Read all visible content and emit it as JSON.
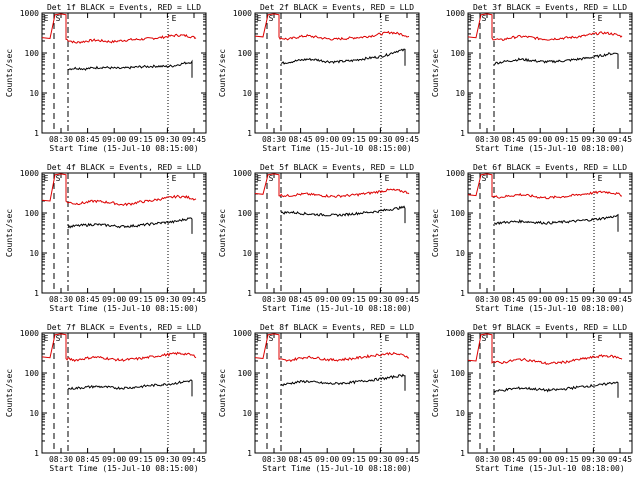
{
  "chart_data": [
    {
      "type": "line",
      "title": "Det 1f BLACK = Events, RED = LLD",
      "xlabel": "Start Time (15-Jul-10 08:15:00)",
      "ylabel": "Counts/sec",
      "ylim": [
        1,
        1000
      ],
      "ylog": true,
      "x_ticks": [
        "08:30",
        "08:45",
        "09:00",
        "09:15",
        "09:30",
        "09:45"
      ],
      "y_ticks": [
        "1",
        "10",
        "100",
        "1000"
      ],
      "markers": [
        "E",
        "S",
        "E"
      ],
      "series": [
        {
          "color": "#dd0000",
          "values": [
            220,
            180,
            195,
            210,
            200,
            190,
            205,
            215,
            220,
            230,
            240,
            260,
            280,
            270,
            240
          ]
        },
        {
          "color": "#000000",
          "values": [
            40,
            42,
            40,
            43,
            44,
            42,
            41,
            43,
            45,
            46,
            47,
            46,
            48,
            55,
            60
          ]
        }
      ]
    },
    {
      "type": "line",
      "title": "Det 2f BLACK = Events, RED = LLD",
      "xlabel": "Start Time (15-Jul-10 08:15:00)",
      "ylabel": "Counts/sec",
      "ylim": [
        1,
        1000
      ],
      "ylog": true,
      "x_ticks": [
        "08:30",
        "08:45",
        "09:00",
        "09:15",
        "09:30",
        "09:45"
      ],
      "y_ticks": [
        "1",
        "10",
        "100",
        "1000"
      ],
      "markers": [
        "E",
        "S",
        "E"
      ],
      "series": [
        {
          "color": "#dd0000",
          "values": [
            240,
            220,
            250,
            270,
            250,
            230,
            220,
            230,
            240,
            250,
            270,
            300,
            330,
            300,
            260
          ]
        },
        {
          "color": "#000000",
          "values": [
            55,
            60,
            65,
            70,
            68,
            62,
            60,
            62,
            64,
            70,
            75,
            80,
            90,
            110,
            120
          ]
        }
      ]
    },
    {
      "type": "line",
      "title": "Det 3f BLACK = Events, RED = LLD",
      "xlabel": "Start Time (15-Jul-10 08:18:00)",
      "ylabel": "Counts/sec",
      "ylim": [
        1,
        1000
      ],
      "ylog": true,
      "x_ticks": [
        "08:30",
        "08:45",
        "09:00",
        "09:15",
        "09:30",
        "09:45"
      ],
      "y_ticks": [
        "1",
        "10",
        "100",
        "1000"
      ],
      "markers": [
        "E",
        "S",
        "E"
      ],
      "series": [
        {
          "color": "#dd0000",
          "values": [
            230,
            210,
            240,
            260,
            250,
            230,
            220,
            230,
            240,
            250,
            270,
            300,
            320,
            300,
            260
          ]
        },
        {
          "color": "#000000",
          "values": [
            55,
            60,
            65,
            70,
            66,
            62,
            60,
            62,
            64,
            68,
            72,
            78,
            85,
            95,
            100
          ]
        }
      ]
    },
    {
      "type": "line",
      "title": "Det 4f BLACK = Events, RED = LLD",
      "xlabel": "Start Time (15-Jul-10 08:15:00)",
      "ylabel": "Counts/sec",
      "ylim": [
        1,
        1000
      ],
      "ylog": true,
      "x_ticks": [
        "08:30",
        "08:45",
        "09:00",
        "09:15",
        "09:30",
        "09:45"
      ],
      "y_ticks": [
        "1",
        "10",
        "100",
        "1000"
      ],
      "markers": [
        "E",
        "S",
        "E"
      ],
      "series": [
        {
          "color": "#dd0000",
          "values": [
            190,
            170,
            180,
            200,
            190,
            180,
            160,
            170,
            190,
            200,
            220,
            240,
            260,
            250,
            220
          ]
        },
        {
          "color": "#000000",
          "values": [
            45,
            48,
            50,
            52,
            50,
            48,
            46,
            47,
            49,
            52,
            55,
            58,
            60,
            68,
            75
          ]
        }
      ]
    },
    {
      "type": "line",
      "title": "Det 5f BLACK = Events, RED = LLD",
      "xlabel": "Start Time (15-Jul-10 08:18:00)",
      "ylabel": "Counts/sec",
      "ylim": [
        1,
        1000
      ],
      "ylog": true,
      "x_ticks": [
        "08:30",
        "08:45",
        "09:00",
        "09:15",
        "09:30",
        "09:45"
      ],
      "y_ticks": [
        "1",
        "10",
        "100",
        "1000"
      ],
      "markers": [
        "E",
        "S",
        "E"
      ],
      "series": [
        {
          "color": "#dd0000",
          "values": [
            280,
            270,
            290,
            300,
            280,
            270,
            260,
            270,
            280,
            300,
            320,
            350,
            380,
            360,
            320
          ]
        },
        {
          "color": "#000000",
          "values": [
            100,
            105,
            100,
            95,
            92,
            90,
            88,
            90,
            95,
            100,
            105,
            110,
            120,
            130,
            140
          ]
        }
      ]
    },
    {
      "type": "line",
      "title": "Det 6f BLACK = Events, RED = LLD",
      "xlabel": "Start Time (15-Jul-10 08:18:00)",
      "ylabel": "Counts/sec",
      "ylim": [
        1,
        1000
      ],
      "ylog": true,
      "x_ticks": [
        "08:30",
        "08:45",
        "09:00",
        "09:15",
        "09:30",
        "09:45"
      ],
      "y_ticks": [
        "1",
        "10",
        "100",
        "1000"
      ],
      "markers": [
        "E",
        "S",
        "E"
      ],
      "series": [
        {
          "color": "#dd0000",
          "values": [
            260,
            250,
            270,
            290,
            270,
            250,
            240,
            250,
            260,
            280,
            300,
            320,
            340,
            320,
            280
          ]
        },
        {
          "color": "#000000",
          "values": [
            55,
            58,
            60,
            62,
            60,
            58,
            56,
            58,
            60,
            62,
            65,
            68,
            72,
            78,
            85
          ]
        }
      ]
    },
    {
      "type": "line",
      "title": "Det 7f BLACK = Events, RED = LLD",
      "xlabel": "Start Time (15-Jul-10 08:15:00)",
      "ylabel": "Counts/sec",
      "ylim": [
        1,
        1000
      ],
      "ylog": true,
      "x_ticks": [
        "08:30",
        "08:45",
        "09:00",
        "09:15",
        "09:30",
        "09:45"
      ],
      "y_ticks": [
        "1",
        "10",
        "100",
        "1000"
      ],
      "markers": [
        "E",
        "S",
        "E"
      ],
      "series": [
        {
          "color": "#dd0000",
          "values": [
            230,
            210,
            230,
            250,
            240,
            220,
            210,
            220,
            230,
            250,
            270,
            290,
            310,
            300,
            260
          ]
        },
        {
          "color": "#000000",
          "values": [
            40,
            42,
            44,
            46,
            45,
            43,
            42,
            43,
            45,
            48,
            50,
            52,
            55,
            60,
            65
          ]
        }
      ]
    },
    {
      "type": "line",
      "title": "Det 8f BLACK = Events, RED = LLD",
      "xlabel": "Start Time (15-Jul-10 08:18:00)",
      "ylabel": "Counts/sec",
      "ylim": [
        1,
        1000
      ],
      "ylog": true,
      "x_ticks": [
        "08:30",
        "08:45",
        "09:00",
        "09:15",
        "09:30",
        "09:45"
      ],
      "y_ticks": [
        "1",
        "10",
        "100",
        "1000"
      ],
      "markers": [
        "E",
        "S",
        "E"
      ],
      "series": [
        {
          "color": "#dd0000",
          "values": [
            220,
            200,
            230,
            250,
            240,
            220,
            210,
            220,
            230,
            250,
            270,
            290,
            310,
            290,
            250
          ]
        },
        {
          "color": "#000000",
          "values": [
            50,
            55,
            60,
            62,
            58,
            55,
            54,
            56,
            58,
            62,
            66,
            70,
            75,
            82,
            90
          ]
        }
      ]
    },
    {
      "type": "line",
      "title": "Det 9f BLACK = Events, RED = LLD",
      "xlabel": "Start Time (15-Jul-10 08:18:00)",
      "ylabel": "Counts/sec",
      "ylim": [
        1,
        1000
      ],
      "ylog": true,
      "x_ticks": [
        "08:30",
        "08:45",
        "09:00",
        "09:15",
        "09:30",
        "09:45"
      ],
      "y_ticks": [
        "1",
        "10",
        "100",
        "1000"
      ],
      "markers": [
        "E",
        "S",
        "E"
      ],
      "series": [
        {
          "color": "#dd0000",
          "values": [
            190,
            180,
            200,
            220,
            210,
            190,
            170,
            180,
            190,
            210,
            230,
            250,
            270,
            260,
            230
          ]
        },
        {
          "color": "#000000",
          "values": [
            35,
            37,
            40,
            42,
            41,
            39,
            37,
            38,
            40,
            43,
            46,
            48,
            50,
            55,
            60
          ]
        }
      ]
    }
  ]
}
